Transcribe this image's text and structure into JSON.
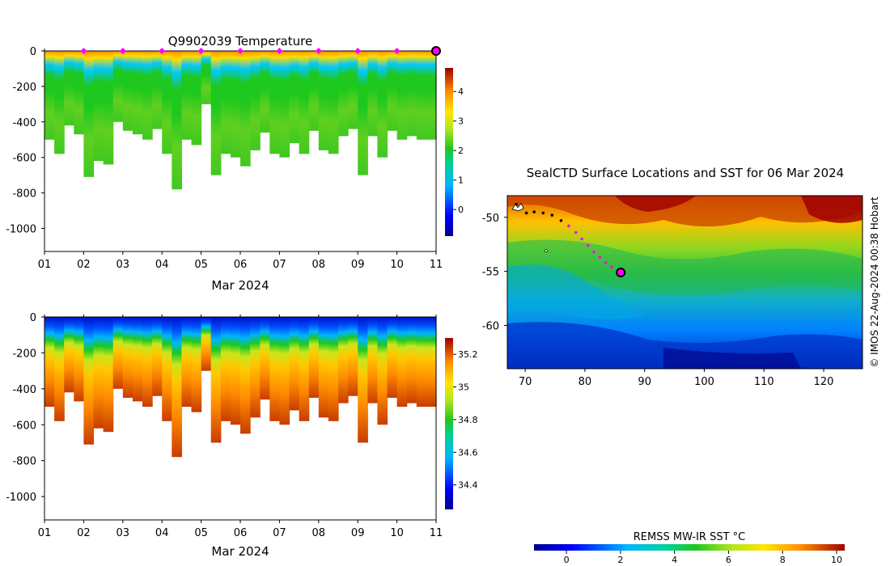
{
  "chart_data": [
    {
      "id": "temperature-section",
      "type": "heatmap",
      "title": "Q9902039  Temperature",
      "xlabel": "Mar 2024",
      "ylabel": "",
      "x_ticks": [
        "01",
        "02",
        "03",
        "04",
        "05",
        "06",
        "07",
        "08",
        "09",
        "10",
        "11"
      ],
      "y_ticks": [
        0,
        -200,
        -400,
        -600,
        -800,
        -1000
      ],
      "xlim_days": [
        1,
        11
      ],
      "ylim": [
        -1130,
        0
      ],
      "colorbar": {
        "ticks": [
          0,
          1,
          2,
          3,
          4
        ],
        "range": [
          -0.9,
          4.8
        ]
      },
      "markers_days": [
        2,
        3,
        4,
        5,
        6,
        7,
        8,
        9,
        10
      ],
      "marker_color": "#ff00ff",
      "current_profile_day": 11,
      "profile_max_depth_m": [
        -500,
        -580,
        -420,
        -470,
        -710,
        -620,
        -640,
        -400,
        -450,
        -470,
        -500,
        -440,
        -580,
        -780,
        -500,
        -530,
        -300,
        -700,
        -580,
        -600,
        -650,
        -560,
        -460,
        -580,
        -600,
        -520,
        -580,
        -450,
        -560,
        -580,
        -480,
        -440,
        -700,
        -480,
        -600,
        -450,
        -500,
        -480,
        -500,
        -500
      ]
    },
    {
      "id": "salinity-section",
      "type": "heatmap",
      "title": "",
      "xlabel": "Mar 2024",
      "ylabel": "",
      "x_ticks": [
        "01",
        "02",
        "03",
        "04",
        "05",
        "06",
        "07",
        "08",
        "09",
        "10",
        "11"
      ],
      "y_ticks": [
        0,
        -200,
        -400,
        -600,
        -800,
        -1000
      ],
      "xlim_days": [
        1,
        11
      ],
      "ylim": [
        -1130,
        0
      ],
      "colorbar": {
        "ticks": [
          34.4,
          34.6,
          34.8,
          35,
          35.2
        ],
        "labels": [
          "34.4",
          "34.6",
          "34.8",
          "35",
          "35.2"
        ],
        "range": [
          34.25,
          35.3
        ]
      }
    },
    {
      "id": "sst-map",
      "type": "heatmap",
      "title": "SealCTD Surface Locations and SST for 06 Mar 2024",
      "xlabel": "",
      "ylabel": "",
      "x_ticks": [
        70,
        80,
        90,
        100,
        110,
        120
      ],
      "y_ticks": [
        -50,
        -55,
        -60
      ],
      "lon_range": [
        67,
        126.5
      ],
      "lat_range": [
        -64,
        -48
      ],
      "track": [
        [
          68.5,
          -48.8
        ],
        [
          69.2,
          -49.0
        ],
        [
          70.2,
          -49.6
        ],
        [
          71.5,
          -49.5
        ],
        [
          73,
          -49.6
        ],
        [
          74.5,
          -49.8
        ],
        [
          76,
          -50.3
        ],
        [
          77.3,
          -50.8
        ],
        [
          78.5,
          -51.4
        ],
        [
          79.5,
          -52.0
        ],
        [
          80.5,
          -52.6
        ],
        [
          81.5,
          -53.2
        ],
        [
          82.5,
          -53.7
        ],
        [
          83.5,
          -54.2
        ],
        [
          84.5,
          -54.6
        ],
        [
          86,
          -55.1
        ]
      ],
      "track_highlight_from_index": 7,
      "current_position": [
        86,
        -55.1
      ],
      "colorbar_label": "REMSS MW-IR SST °C",
      "colorbar": {
        "ticks": [
          0,
          2,
          4,
          6,
          8,
          10
        ],
        "range": [
          -1.2,
          10.3
        ]
      },
      "credit": "© IMOS 22-Aug-2024 00:38 Hobart"
    }
  ]
}
